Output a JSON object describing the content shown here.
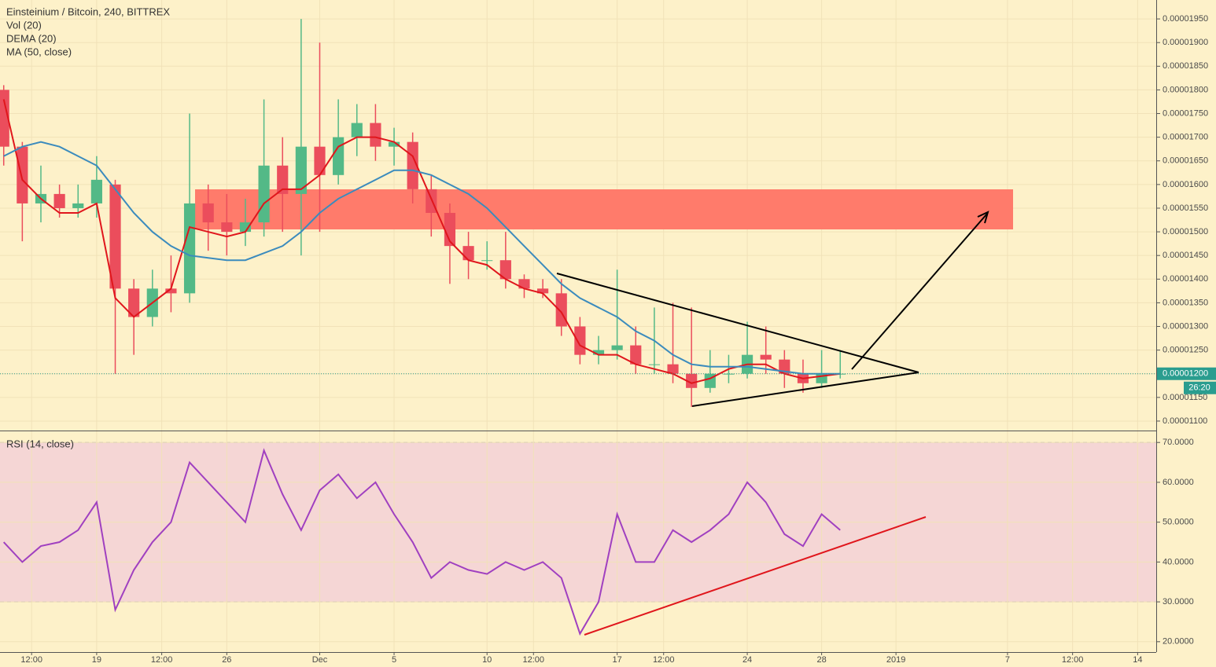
{
  "chart_data": [
    {
      "type": "candlestick",
      "title": "Einsteinium / Bitcoin, 240, BITTREX",
      "annotations": [
        "Vol (20)"
      ],
      "x": [
        14,
        15,
        16,
        17,
        18,
        19,
        20,
        21,
        22,
        23,
        24,
        25,
        26,
        27,
        28,
        29,
        30,
        31,
        32,
        33,
        34,
        35,
        36,
        37,
        38,
        39,
        40,
        41,
        42,
        43,
        44,
        45,
        46,
        47,
        48,
        49,
        50,
        51,
        52,
        53,
        54,
        55,
        56,
        57,
        58,
        59
      ],
      "open": [
        1.8e-05,
        1.68e-05,
        1.56e-05,
        1.58e-05,
        1.55e-05,
        1.56e-05,
        1.6e-05,
        1.38e-05,
        1.32e-05,
        1.38e-05,
        1.37e-05,
        1.56e-05,
        1.52e-05,
        1.5e-05,
        1.52e-05,
        1.64e-05,
        1.58e-05,
        1.68e-05,
        1.62e-05,
        1.7e-05,
        1.73e-05,
        1.68e-05,
        1.69e-05,
        1.59e-05,
        1.54e-05,
        1.47e-05,
        1.44e-05,
        1.44e-05,
        1.4e-05,
        1.38e-05,
        1.37e-05,
        1.3e-05,
        1.24e-05,
        1.25e-05,
        1.26e-05,
        1.22e-05,
        1.22e-05,
        1.2e-05,
        1.17e-05,
        1.2e-05,
        1.2e-05,
        1.24e-05,
        1.23e-05,
        1.2e-05,
        1.18e-05,
        1.2e-05
      ],
      "high": [
        1.81e-05,
        1.69e-05,
        1.64e-05,
        1.6e-05,
        1.6e-05,
        1.66e-05,
        1.61e-05,
        1.4e-05,
        1.42e-05,
        1.45e-05,
        1.75e-05,
        1.6e-05,
        1.58e-05,
        1.57e-05,
        1.78e-05,
        1.7e-05,
        1.95e-05,
        1.9e-05,
        1.78e-05,
        1.77e-05,
        1.77e-05,
        1.72e-05,
        1.71e-05,
        1.62e-05,
        1.56e-05,
        1.5e-05,
        1.48e-05,
        1.5e-05,
        1.41e-05,
        1.4e-05,
        1.4e-05,
        1.32e-05,
        1.28e-05,
        1.42e-05,
        1.3e-05,
        1.34e-05,
        1.35e-05,
        1.34e-05,
        1.25e-05,
        1.24e-05,
        1.31e-05,
        1.3e-05,
        1.25e-05,
        1.23e-05,
        1.25e-05,
        1.25e-05
      ],
      "low": [
        1.64e-05,
        1.48e-05,
        1.52e-05,
        1.53e-05,
        1.53e-05,
        1.53e-05,
        1.2e-05,
        1.24e-05,
        1.3e-05,
        1.33e-05,
        1.35e-05,
        1.46e-05,
        1.45e-05,
        1.47e-05,
        1.49e-05,
        1.5e-05,
        1.45e-05,
        1.5e-05,
        1.6e-05,
        1.66e-05,
        1.65e-05,
        1.64e-05,
        1.56e-05,
        1.49e-05,
        1.39e-05,
        1.4e-05,
        1.42e-05,
        1.38e-05,
        1.36e-05,
        1.36e-05,
        1.28e-05,
        1.22e-05,
        1.22e-05,
        1.23e-05,
        1.2e-05,
        1.2e-05,
        1.18e-05,
        1.13e-05,
        1.16e-05,
        1.18e-05,
        1.19e-05,
        1.2e-05,
        1.17e-05,
        1.16e-05,
        1.17e-05,
        1.19e-05
      ],
      "close": [
        1.68e-05,
        1.56e-05,
        1.58e-05,
        1.55e-05,
        1.56e-05,
        1.61e-05,
        1.38e-05,
        1.32e-05,
        1.38e-05,
        1.37e-05,
        1.56e-05,
        1.52e-05,
        1.5e-05,
        1.52e-05,
        1.64e-05,
        1.58e-05,
        1.68e-05,
        1.62e-05,
        1.7e-05,
        1.73e-05,
        1.68e-05,
        1.69e-05,
        1.59e-05,
        1.54e-05,
        1.47e-05,
        1.44e-05,
        1.44e-05,
        1.4e-05,
        1.38e-05,
        1.37e-05,
        1.3e-05,
        1.24e-05,
        1.25e-05,
        1.26e-05,
        1.22e-05,
        1.22e-05,
        1.2e-05,
        1.17e-05,
        1.2e-05,
        1.2e-05,
        1.24e-05,
        1.23e-05,
        1.2e-05,
        1.18e-05,
        1.2e-05,
        1.2e-05
      ],
      "up_color": "#53b987",
      "down_color": "#eb4d5c",
      "series": [
        {
          "name": "DEMA (20)",
          "color": "#e0161c",
          "values": [
            1.78e-05,
            1.61e-05,
            1.57e-05,
            1.54e-05,
            1.54e-05,
            1.56e-05,
            1.36e-05,
            1.32e-05,
            1.35e-05,
            1.38e-05,
            1.51e-05,
            1.5e-05,
            1.49e-05,
            1.5e-05,
            1.56e-05,
            1.59e-05,
            1.59e-05,
            1.62e-05,
            1.68e-05,
            1.7e-05,
            1.7e-05,
            1.69e-05,
            1.66e-05,
            1.57e-05,
            1.48e-05,
            1.44e-05,
            1.43e-05,
            1.4e-05,
            1.38e-05,
            1.37e-05,
            1.33e-05,
            1.26e-05,
            1.24e-05,
            1.24e-05,
            1.22e-05,
            1.21e-05,
            1.2e-05,
            1.18e-05,
            1.19e-05,
            1.21e-05,
            1.22e-05,
            1.22e-05,
            1.2e-05,
            1.19e-05,
            1.195e-05,
            1.2e-05
          ]
        },
        {
          "name": "MA (50, close)",
          "color": "#3b8bbd",
          "values": [
            1.66e-05,
            1.68e-05,
            1.69e-05,
            1.68e-05,
            1.66e-05,
            1.64e-05,
            1.59e-05,
            1.54e-05,
            1.5e-05,
            1.47e-05,
            1.45e-05,
            1.445e-05,
            1.44e-05,
            1.44e-05,
            1.455e-05,
            1.47e-05,
            1.5e-05,
            1.54e-05,
            1.57e-05,
            1.59e-05,
            1.61e-05,
            1.63e-05,
            1.63e-05,
            1.62e-05,
            1.6e-05,
            1.58e-05,
            1.55e-05,
            1.51e-05,
            1.47e-05,
            1.43e-05,
            1.39e-05,
            1.36e-05,
            1.34e-05,
            1.32e-05,
            1.29e-05,
            1.27e-05,
            1.24e-05,
            1.22e-05,
            1.215e-05,
            1.215e-05,
            1.215e-05,
            1.21e-05,
            1.205e-05,
            1.2e-05,
            1.2e-05,
            1.2e-05
          ]
        }
      ],
      "last_price": 1.2e-05,
      "last_price_label": "0.00001200",
      "countdown": "26:20",
      "xlim": [
        13.8,
        76
      ],
      "ylim": [
        1.08e-05,
        1.99e-05
      ],
      "yticks": [
        {
          "value": 1.1e-05,
          "label": "0.00001100"
        },
        {
          "value": 1.15e-05,
          "label": "0.00001150"
        },
        {
          "value": 1.2e-05,
          "label": "0.00001200"
        },
        {
          "value": 1.25e-05,
          "label": "0.00001250"
        },
        {
          "value": 1.3e-05,
          "label": "0.00001300"
        },
        {
          "value": 1.35e-05,
          "label": "0.00001350"
        },
        {
          "value": 1.4e-05,
          "label": "0.00001400"
        },
        {
          "value": 1.45e-05,
          "label": "0.00001450"
        },
        {
          "value": 1.5e-05,
          "label": "0.00001500"
        },
        {
          "value": 1.55e-05,
          "label": "0.00001550"
        },
        {
          "value": 1.6e-05,
          "label": "0.00001600"
        },
        {
          "value": 1.65e-05,
          "label": "0.00001650"
        },
        {
          "value": 1.7e-05,
          "label": "0.00001700"
        },
        {
          "value": 1.75e-05,
          "label": "0.00001750"
        },
        {
          "value": 1.8e-05,
          "label": "0.00001800"
        },
        {
          "value": 1.85e-05,
          "label": "0.00001850"
        },
        {
          "value": 1.9e-05,
          "label": "0.00001900"
        },
        {
          "value": 1.95e-05,
          "label": "0.00001950"
        }
      ],
      "grid": true
    },
    {
      "type": "line",
      "title": "RSI (14, close)",
      "color": "#a040c0",
      "x": [
        14,
        15,
        16,
        17,
        18,
        19,
        20,
        21,
        22,
        23,
        24,
        25,
        26,
        27,
        28,
        29,
        30,
        31,
        32,
        33,
        34,
        35,
        36,
        37,
        38,
        39,
        40,
        41,
        42,
        43,
        44,
        45,
        46,
        47,
        48,
        49,
        50,
        51,
        52,
        53,
        54,
        55,
        56,
        57,
        58,
        59
      ],
      "values": [
        45,
        40,
        44,
        45,
        48,
        55,
        28,
        38,
        45,
        50,
        65,
        60,
        55,
        50,
        68,
        57,
        48,
        58,
        62,
        56,
        60,
        52,
        45,
        36,
        40,
        38,
        37,
        40,
        38,
        40,
        36,
        22,
        30,
        52,
        40,
        40,
        48,
        45,
        48,
        52,
        60,
        55,
        47,
        44,
        52,
        48
      ],
      "band": [
        30,
        70
      ],
      "band_color": "#f3cfd8",
      "xlim": [
        13.8,
        76
      ],
      "ylim": [
        17.4,
        72.8
      ],
      "yticks": [
        {
          "value": 20,
          "label": "20.0000"
        },
        {
          "value": 30,
          "label": "30.0000"
        },
        {
          "value": 40,
          "label": "40.0000"
        },
        {
          "value": 50,
          "label": "50.0000"
        },
        {
          "value": 60,
          "label": "60.0000"
        },
        {
          "value": 70,
          "label": "70.0000"
        }
      ],
      "xticks": [
        {
          "value": 15.5,
          "label": "12:00"
        },
        19,
        {
          "value": 22.5,
          "label": "12:00"
        },
        26,
        {
          "value": 31,
          "label": "Dec"
        },
        {
          "value": 35,
          "label": "5"
        },
        {
          "value": 40,
          "label": "10"
        },
        {
          "value": 42.5,
          "label": "12:00"
        },
        {
          "value": 47,
          "label": "17"
        },
        {
          "value": 49.5,
          "label": "12:00"
        },
        {
          "value": 54,
          "label": "24"
        },
        {
          "value": 58,
          "label": "28"
        },
        {
          "value": 62,
          "label": "2019"
        },
        {
          "value": 68,
          "label": "7"
        },
        {
          "value": 71.5,
          "label": "12:00"
        },
        {
          "value": 75,
          "label": "14"
        }
      ],
      "grid": true
    }
  ]
}
